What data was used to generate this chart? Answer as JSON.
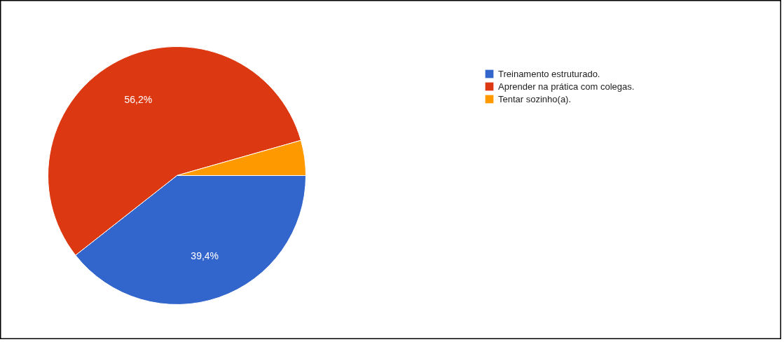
{
  "chart_data": {
    "type": "pie",
    "categories": [
      "Treinamento estruturado.",
      "Aprender na prática com colegas.",
      "Tentar sozinho(a)."
    ],
    "values": [
      39.4,
      56.2,
      4.4
    ],
    "colors": [
      "#3366cc",
      "#dc3912",
      "#ff9900"
    ],
    "value_labels": [
      "39,4%",
      "56,2%",
      null
    ],
    "legend": "right"
  }
}
